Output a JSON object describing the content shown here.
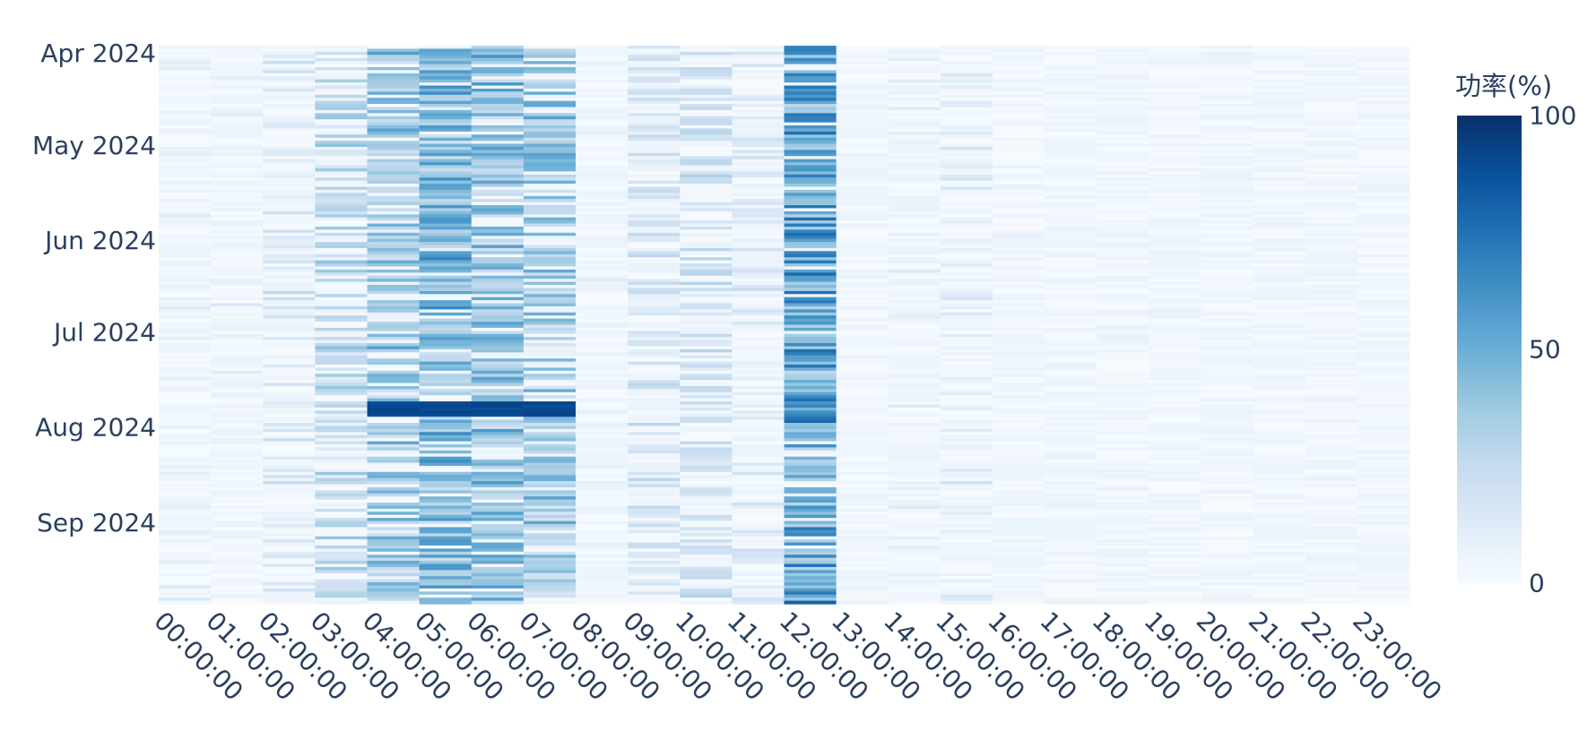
{
  "chart_data": {
    "type": "heatmap",
    "title": "",
    "xlabel": "",
    "ylabel": "",
    "colorscale": "Blues",
    "colorscale_stops": [
      "#f7fbff",
      "#deebf7",
      "#c6dbef",
      "#9ecae1",
      "#6baed6",
      "#4292c6",
      "#2171b5",
      "#08519c",
      "#08306b"
    ],
    "z_range": [
      0,
      100
    ],
    "x": [
      "00:00:00",
      "01:00:00",
      "02:00:00",
      "03:00:00",
      "04:00:00",
      "05:00:00",
      "06:00:00",
      "07:00:00",
      "08:00:00",
      "09:00:00",
      "10:00:00",
      "11:00:00",
      "12:00:00",
      "13:00:00",
      "14:00:00",
      "15:00:00",
      "16:00:00",
      "17:00:00",
      "18:00:00",
      "19:00:00",
      "20:00:00",
      "21:00:00",
      "22:00:00",
      "23:00:00"
    ],
    "y_range": [
      "2024-03-30",
      "2024-09-27"
    ],
    "y_ticks": [
      {
        "date": "2024-04-01",
        "label": "Apr 2024"
      },
      {
        "date": "2024-05-01",
        "label": "May 2024"
      },
      {
        "date": "2024-06-01",
        "label": "Jun 2024"
      },
      {
        "date": "2024-07-01",
        "label": "Jul 2024"
      },
      {
        "date": "2024-08-01",
        "label": "Aug 2024"
      },
      {
        "date": "2024-09-01",
        "label": "Sep 2024"
      }
    ],
    "hourly_mean_pct": [
      7,
      7,
      14,
      24,
      33,
      40,
      36,
      33,
      5,
      16,
      18,
      13,
      48,
      4,
      7,
      10,
      2,
      1,
      1,
      1,
      1,
      1,
      2,
      2
    ],
    "hourly_activity_prob": [
      0.12,
      0.1,
      0.3,
      0.55,
      0.75,
      0.85,
      0.8,
      0.7,
      0.08,
      0.4,
      0.42,
      0.3,
      0.85,
      0.06,
      0.14,
      0.2,
      0.03,
      0.01,
      0.0,
      0.0,
      0.0,
      0.0,
      0.0,
      0.0
    ],
    "peak_band": {
      "start": "2024-07-24",
      "end": "2024-07-28",
      "hours": [
        "04:00:00",
        "05:00:00",
        "06:00:00",
        "07:00:00"
      ],
      "value_pct": 95
    },
    "colorbar": {
      "title": "功率(%)",
      "ticks": [
        0,
        50,
        100
      ]
    }
  }
}
